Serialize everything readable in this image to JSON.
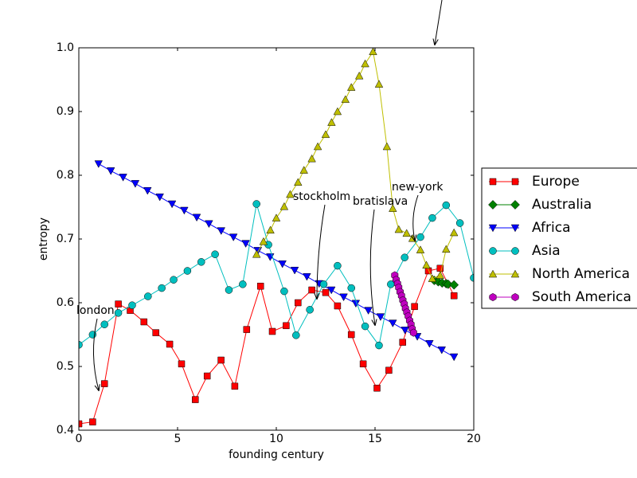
{
  "chart_data": {
    "type": "line",
    "xlabel": "founding century",
    "ylabel": "entropy",
    "xlim": [
      0,
      20
    ],
    "ylim": [
      0.4,
      1.0
    ],
    "xticks": [
      0,
      5,
      10,
      15,
      20
    ],
    "yticks": [
      0.4,
      0.5,
      0.6,
      0.7,
      0.8,
      0.9,
      {
        "value": 1,
        "label": "1.0"
      }
    ],
    "annotations": [
      "london",
      "stockholm",
      "bratislava",
      "new-york"
    ],
    "series": [
      {
        "name": "Europe",
        "color": "#ff0000",
        "marker": "s",
        "x": [
          0,
          0.7,
          1.3,
          2.0,
          2.6,
          3.3,
          3.9,
          4.6,
          5.2,
          5.9,
          6.5,
          7.2,
          7.9,
          8.5,
          9.2,
          9.8,
          10.5,
          11.1,
          11.8,
          12.5,
          13.1,
          13.8,
          14.4,
          15.1,
          15.7,
          16.4,
          17.0,
          17.7,
          18.3,
          19.0
        ],
        "values": [
          0.41,
          0.413,
          0.473,
          0.598,
          0.588,
          0.57,
          0.553,
          0.535,
          0.504,
          0.448,
          0.485,
          0.51,
          0.469,
          0.558,
          0.626,
          0.555,
          0.564,
          0.6,
          0.62,
          0.616,
          0.595,
          0.55,
          0.504,
          0.466,
          0.494,
          0.538,
          0.594,
          0.65,
          0.654,
          0.611
        ]
      },
      {
        "name": "Australia",
        "color": "#008000",
        "marker": "D",
        "x": [
          18.0,
          18.2,
          18.4,
          18.6,
          18.7,
          19.0
        ],
        "values": [
          0.635,
          0.633,
          0.631,
          0.63,
          0.629,
          0.628
        ]
      },
      {
        "name": "Africa",
        "color": "#0000ff",
        "marker": "v",
        "x": [
          1.0,
          1.62,
          2.24,
          2.86,
          3.48,
          4.1,
          4.72,
          5.34,
          5.97,
          6.59,
          7.21,
          7.83,
          8.45,
          9.07,
          9.69,
          10.31,
          10.93,
          11.55,
          12.17,
          12.79,
          13.41,
          14.03,
          14.66,
          15.28,
          15.9,
          16.52,
          17.14,
          17.76,
          18.38,
          19.0
        ],
        "values": [
          0.818,
          0.807,
          0.797,
          0.787,
          0.776,
          0.766,
          0.755,
          0.745,
          0.734,
          0.724,
          0.713,
          0.703,
          0.693,
          0.682,
          0.672,
          0.661,
          0.651,
          0.641,
          0.63,
          0.62,
          0.609,
          0.599,
          0.588,
          0.578,
          0.568,
          0.557,
          0.547,
          0.536,
          0.526,
          0.515
        ]
      },
      {
        "name": "Asia",
        "color": "#00bfbf",
        "marker": "o",
        "x": [
          0,
          0.7,
          1.3,
          2.0,
          2.7,
          3.5,
          4.2,
          4.8,
          5.5,
          6.2,
          6.9,
          7.6,
          8.3,
          9.0,
          9.6,
          10.4,
          11.0,
          11.7,
          12.4,
          13.1,
          13.8,
          14.5,
          15.2,
          15.8,
          16.5,
          17.3,
          17.9,
          18.6,
          19.3,
          20.0
        ],
        "values": [
          0.534,
          0.55,
          0.566,
          0.584,
          0.596,
          0.61,
          0.623,
          0.636,
          0.65,
          0.664,
          0.676,
          0.62,
          0.629,
          0.755,
          0.691,
          0.618,
          0.549,
          0.589,
          0.629,
          0.658,
          0.623,
          0.563,
          0.533,
          0.629,
          0.671,
          0.703,
          0.733,
          0.753,
          0.725,
          0.639
        ]
      },
      {
        "name": "North America",
        "color": "#bfbf00",
        "marker": "^",
        "x": [
          9.0,
          9.35,
          9.7,
          10.0,
          10.4,
          10.7,
          11.1,
          11.4,
          11.8,
          12.1,
          12.5,
          12.8,
          13.1,
          13.5,
          13.8,
          14.2,
          14.5,
          14.9,
          15.2,
          15.6,
          15.9,
          16.2,
          16.6,
          16.9,
          17.3,
          17.6,
          17.9,
          18.3,
          18.6,
          19.0
        ],
        "values": [
          0.676,
          0.696,
          0.714,
          0.733,
          0.751,
          0.77,
          0.789,
          0.808,
          0.826,
          0.845,
          0.864,
          0.883,
          0.9,
          0.919,
          0.938,
          0.956,
          0.975,
          0.994,
          0.943,
          0.845,
          0.748,
          0.715,
          0.709,
          0.701,
          0.683,
          0.659,
          0.638,
          0.643,
          0.684,
          0.71
        ]
      },
      {
        "name": "South America",
        "color": "#bf00bf",
        "marker": "h",
        "x": [
          16.0,
          16.07,
          16.14,
          16.2,
          16.27,
          16.34,
          16.41,
          16.48,
          16.54,
          16.61,
          16.68,
          16.75,
          16.82,
          16.88,
          16.95
        ],
        "values": [
          0.643,
          0.636,
          0.63,
          0.624,
          0.617,
          0.611,
          0.604,
          0.598,
          0.591,
          0.585,
          0.579,
          0.572,
          0.566,
          0.559,
          0.553
        ]
      }
    ]
  }
}
